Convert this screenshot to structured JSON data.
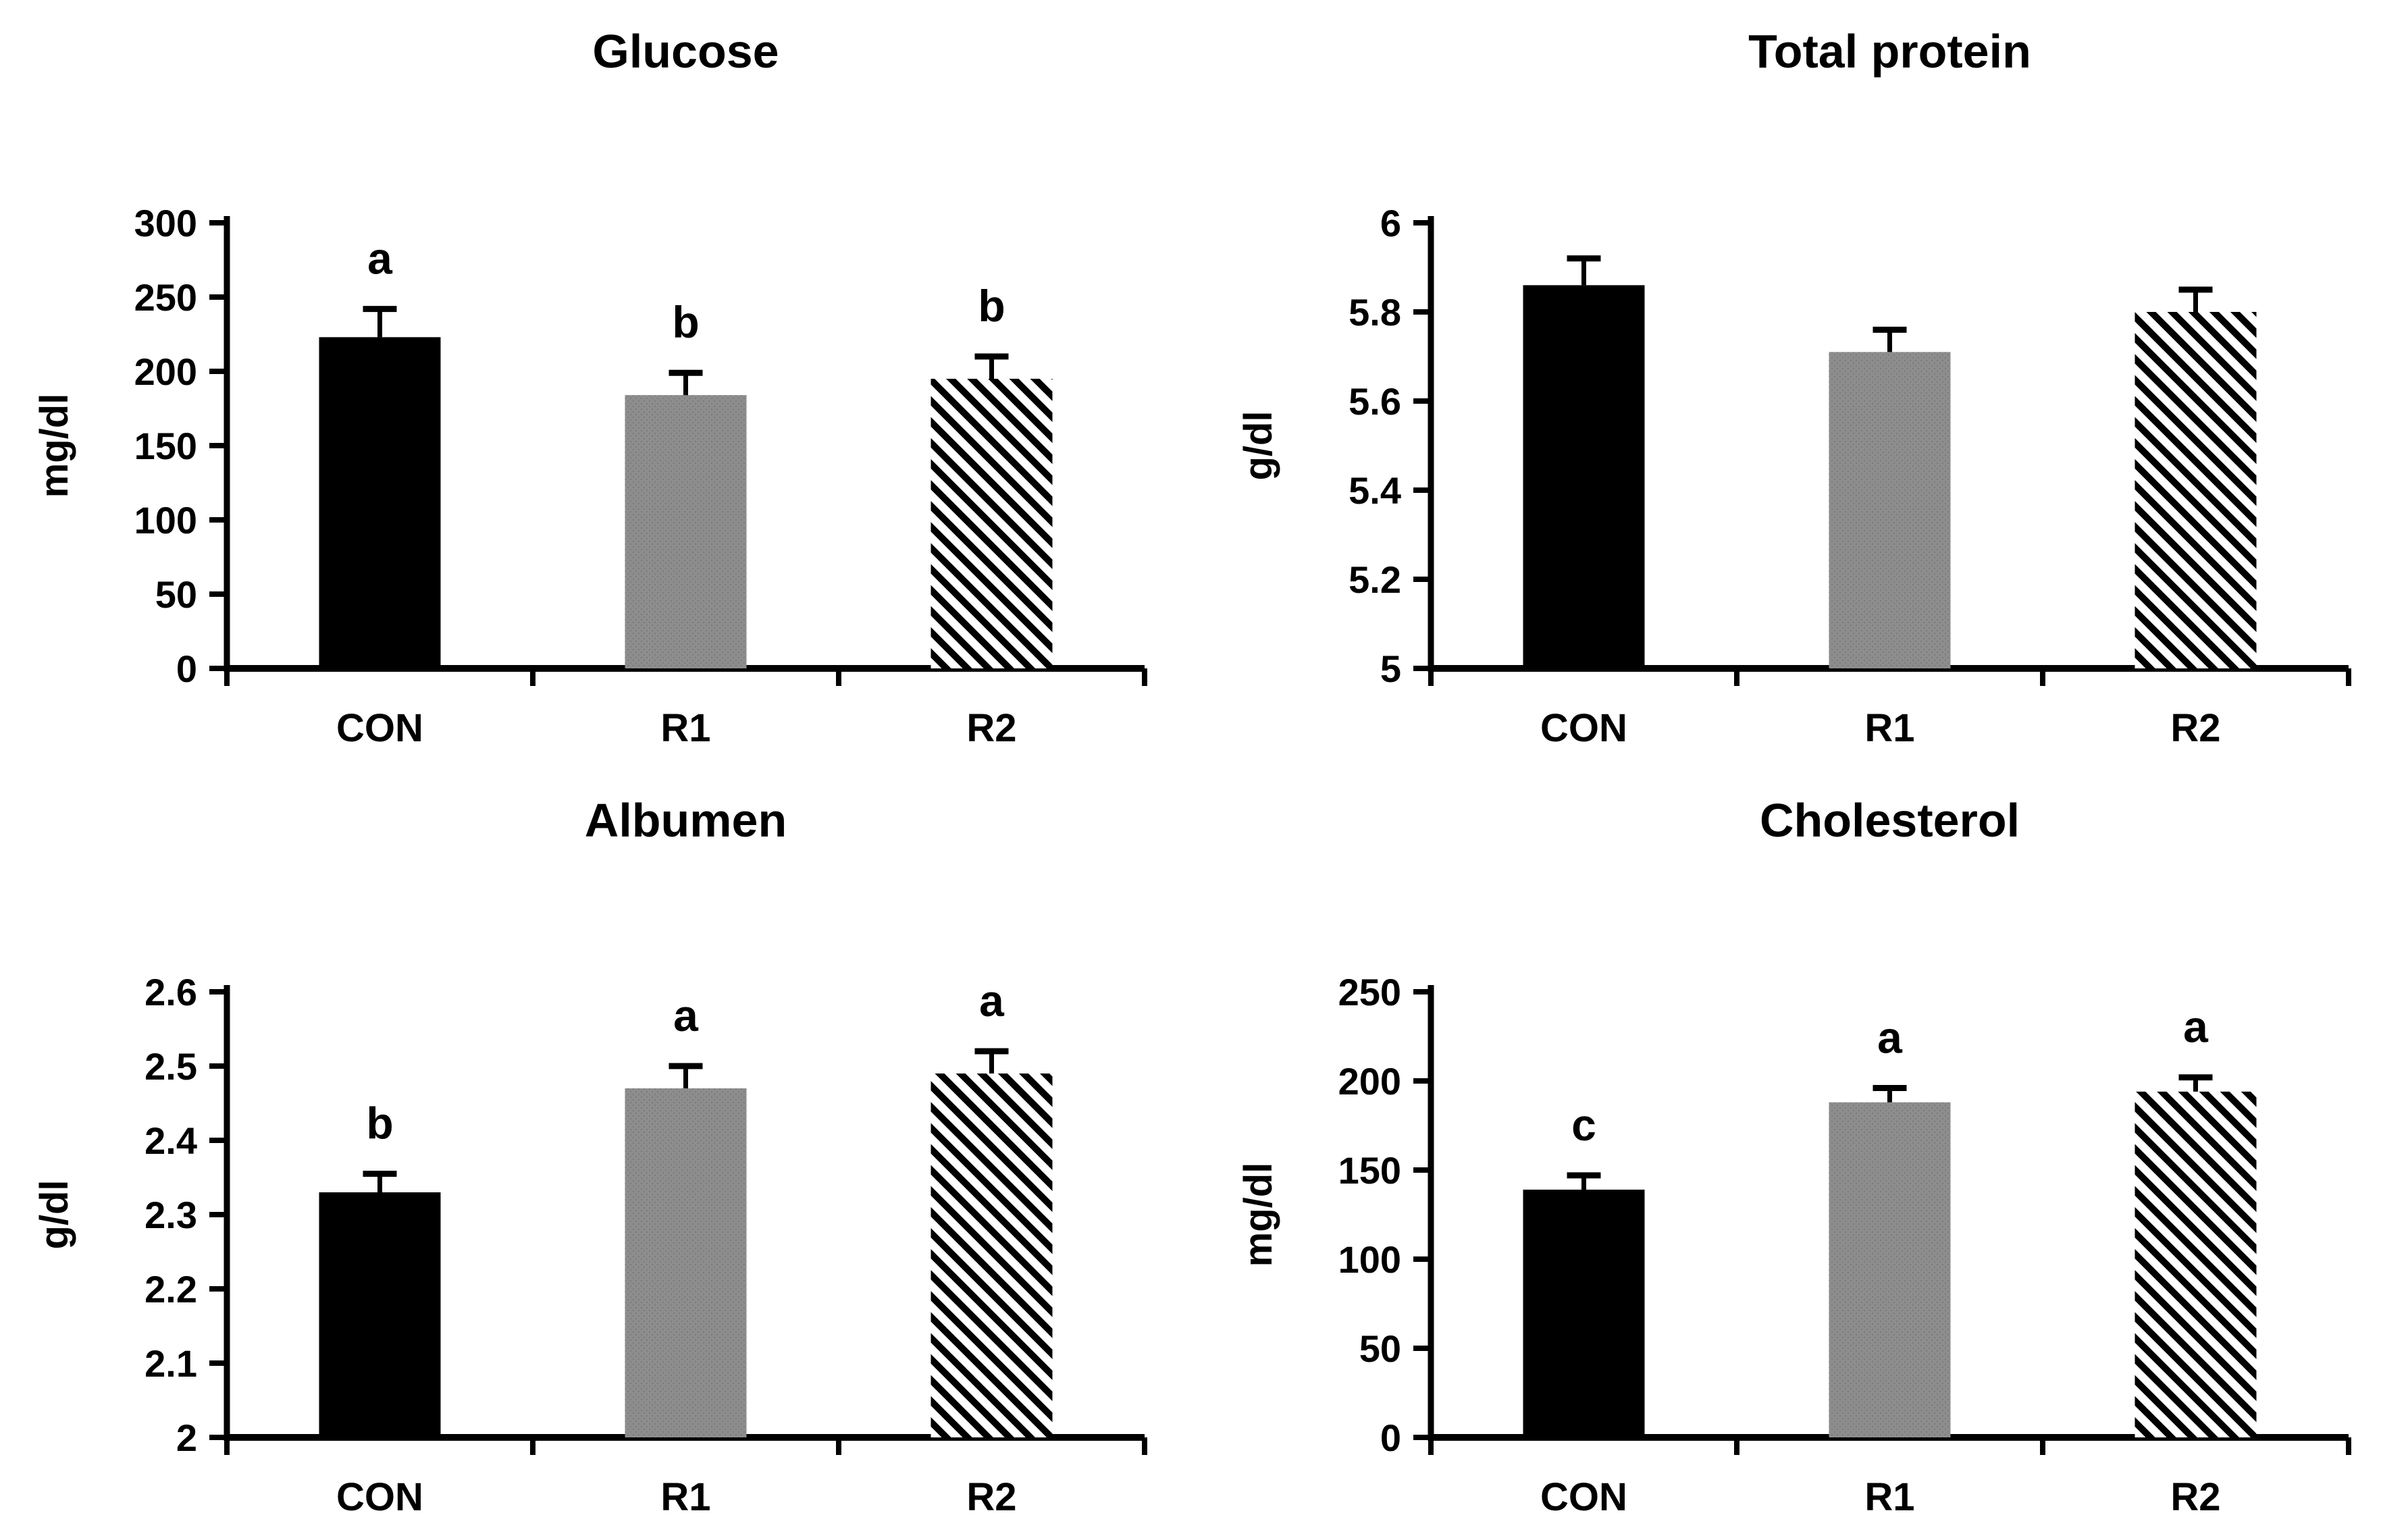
{
  "figure": {
    "background": "#ffffff",
    "layout": "2x2-grid-of-bar-charts"
  },
  "colors": {
    "axis": "#000000",
    "text": "#000000",
    "bar_black": "#000000",
    "bar_gray": "#8d8d8d",
    "bar_gray_dot": "#7a7a7a",
    "hatch_stripe": "#000000",
    "hatch_background": "#ffffff"
  },
  "chart_data": [
    {
      "type": "bar",
      "title": "Glucose",
      "ylabel": "mg/dl",
      "xlabel": "",
      "categories": [
        "CON",
        "R1",
        "R2"
      ],
      "values": [
        223,
        184,
        195
      ],
      "errors": [
        19,
        15,
        15
      ],
      "sig_letters": [
        "a",
        "b",
        "b"
      ],
      "ylim": [
        0,
        300
      ],
      "yticks": [
        0,
        50,
        100,
        150,
        200,
        250,
        300
      ],
      "ytick_labels": [
        "0",
        "50",
        "100",
        "150",
        "200",
        "250",
        "300"
      ],
      "bar_styles": [
        "solid-black",
        "gray-stipple",
        "diagonal-hatch"
      ],
      "legend": "none",
      "grid": false
    },
    {
      "type": "bar",
      "title": "Total protein",
      "ylabel": "g/dl",
      "xlabel": "",
      "categories": [
        "CON",
        "R1",
        "R2"
      ],
      "values": [
        5.86,
        5.71,
        5.8
      ],
      "errors": [
        0.06,
        0.05,
        0.05
      ],
      "sig_letters": [
        "",
        "",
        ""
      ],
      "ylim": [
        5,
        6
      ],
      "yticks": [
        5,
        5.2,
        5.4,
        5.6,
        5.8,
        6
      ],
      "ytick_labels": [
        "5",
        "5.2",
        "5.4",
        "5.6",
        "5.8",
        "6"
      ],
      "bar_styles": [
        "solid-black",
        "gray-stipple",
        "diagonal-hatch"
      ],
      "legend": "none",
      "grid": false
    },
    {
      "type": "bar",
      "title": "Albumen",
      "ylabel": "g/dl",
      "xlabel": "",
      "categories": [
        "CON",
        "R1",
        "R2"
      ],
      "values": [
        2.33,
        2.47,
        2.49
      ],
      "errors": [
        0.025,
        0.03,
        0.03
      ],
      "sig_letters": [
        "b",
        "a",
        "a"
      ],
      "ylim": [
        2,
        2.6
      ],
      "yticks": [
        2,
        2.1,
        2.2,
        2.3,
        2.4,
        2.5,
        2.6
      ],
      "ytick_labels": [
        "2",
        "2.1",
        "2.2",
        "2.3",
        "2.4",
        "2.5",
        "2.6"
      ],
      "bar_styles": [
        "solid-black",
        "gray-stipple",
        "diagonal-hatch"
      ],
      "legend": "none",
      "grid": false
    },
    {
      "type": "bar",
      "title": "Cholesterol",
      "ylabel": "mg/dl",
      "xlabel": "",
      "categories": [
        "CON",
        "R1",
        "R2"
      ],
      "values": [
        139,
        188,
        194
      ],
      "errors": [
        8,
        8,
        8
      ],
      "sig_letters": [
        "c",
        "a",
        "a"
      ],
      "ylim": [
        0,
        250
      ],
      "yticks": [
        0,
        50,
        100,
        150,
        200,
        250
      ],
      "ytick_labels": [
        "0",
        "50",
        "100",
        "150",
        "200",
        "250"
      ],
      "bar_styles": [
        "solid-black",
        "gray-stipple",
        "diagonal-hatch"
      ],
      "legend": "none",
      "grid": false
    }
  ]
}
